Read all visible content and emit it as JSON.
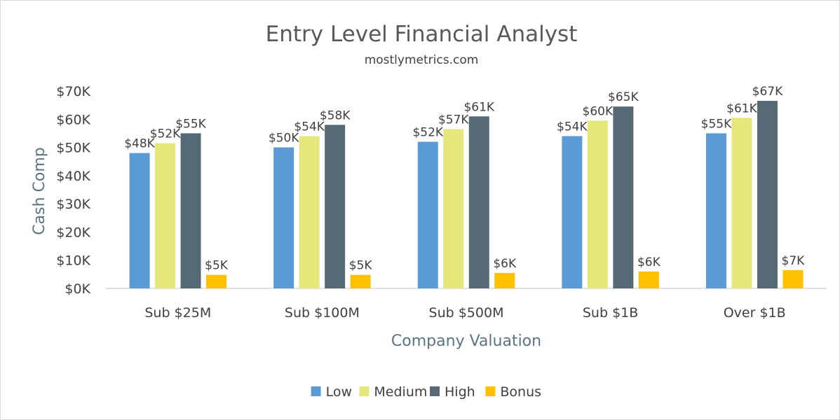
{
  "chart_data": {
    "type": "bar",
    "title": "Entry Level Financial Analyst",
    "subtitle": "mostlymetrics.com",
    "xlabel": "Company Valuation",
    "ylabel": "Cash Comp",
    "categories": [
      "Sub $25M",
      "Sub $100M",
      "Sub $500M",
      "Sub $1B",
      "Over $1B"
    ],
    "ylim": [
      0,
      70
    ],
    "yticks": [
      0,
      10,
      20,
      30,
      40,
      50,
      60,
      70
    ],
    "ytick_labels": [
      "$0K",
      "$10K",
      "$20K",
      "$30K",
      "$40K",
      "$50K",
      "$60K",
      "$70K"
    ],
    "grid": false,
    "legend_position": "bottom",
    "series": [
      {
        "name": "Low",
        "color": "#5b9bd5",
        "values": [
          48,
          50,
          52,
          54,
          55
        ],
        "labels": [
          "$48K",
          "$50K",
          "$52K",
          "$54K",
          "$55K"
        ]
      },
      {
        "name": "Medium",
        "color": "#e6e77a",
        "values": [
          51.5,
          54,
          56.5,
          59.5,
          60.5
        ],
        "labels": [
          "$52K",
          "$54K",
          "$57K",
          "$60K",
          "$61K"
        ]
      },
      {
        "name": "High",
        "color": "#566a76",
        "values": [
          55,
          58,
          61,
          64.5,
          66.5
        ],
        "labels": [
          "$55K",
          "$58K",
          "$61K",
          "$65K",
          "$67K"
        ]
      },
      {
        "name": "Bonus",
        "color": "#ffc000",
        "values": [
          4.8,
          4.8,
          5.5,
          6,
          6.5
        ],
        "labels": [
          "$5K",
          "$5K",
          "$6K",
          "$6K",
          "$7K"
        ]
      }
    ]
  }
}
